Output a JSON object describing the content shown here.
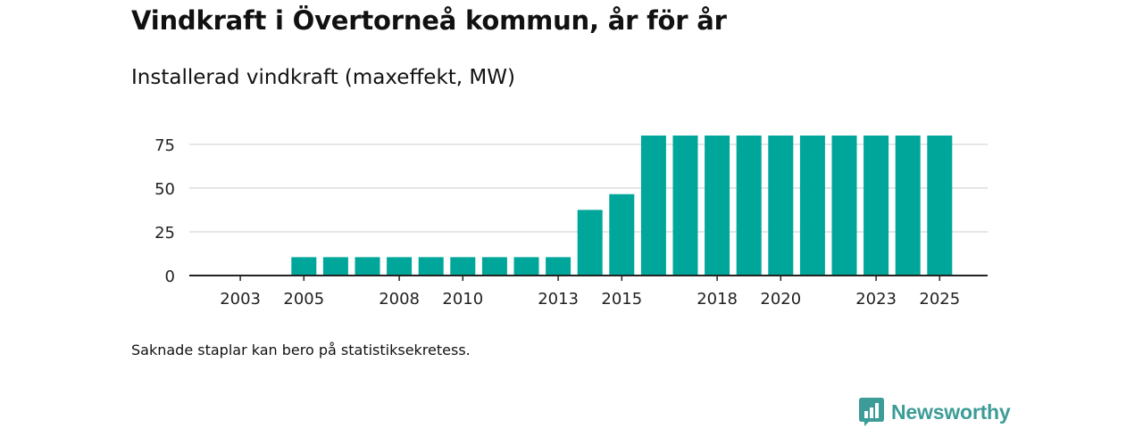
{
  "title": "Vindkraft i Övertorneå kommun, år för år",
  "subtitle": "Installerad vindkraft (maxeffekt, MW)",
  "note": "Saknade staplar kan bero på statistiksekretess.",
  "brand": {
    "name": "Newsworthy",
    "icon": "bar-chart-logo-icon"
  },
  "colors": {
    "bar": "#00a69a",
    "grid": "#dddddd",
    "axis": "#222222",
    "brand": "#3d9c97"
  },
  "chart_data": {
    "type": "bar",
    "title": "Installerad vindkraft (maxeffekt, MW)",
    "xlabel": "",
    "ylabel": "",
    "ylim": [
      0,
      80
    ],
    "yticks": [
      0,
      25,
      50,
      75
    ],
    "grid": true,
    "categories": [
      "2002",
      "2003",
      "2004",
      "2005",
      "2006",
      "2007",
      "2008",
      "2009",
      "2010",
      "2011",
      "2012",
      "2013",
      "2014",
      "2015",
      "2016",
      "2017",
      "2018",
      "2019",
      "2020",
      "2021",
      "2022",
      "2023",
      "2024",
      "2025"
    ],
    "values": [
      null,
      null,
      null,
      10.5,
      10.5,
      10.5,
      10.5,
      10.5,
      10.5,
      10.5,
      10.5,
      10.5,
      37.5,
      46.5,
      80,
      80,
      80,
      80,
      80,
      80,
      80,
      80,
      80,
      80
    ],
    "xtick_labels": [
      "2003",
      "2005",
      "2008",
      "2010",
      "2013",
      "2015",
      "2018",
      "2020",
      "2023",
      "2025"
    ]
  }
}
